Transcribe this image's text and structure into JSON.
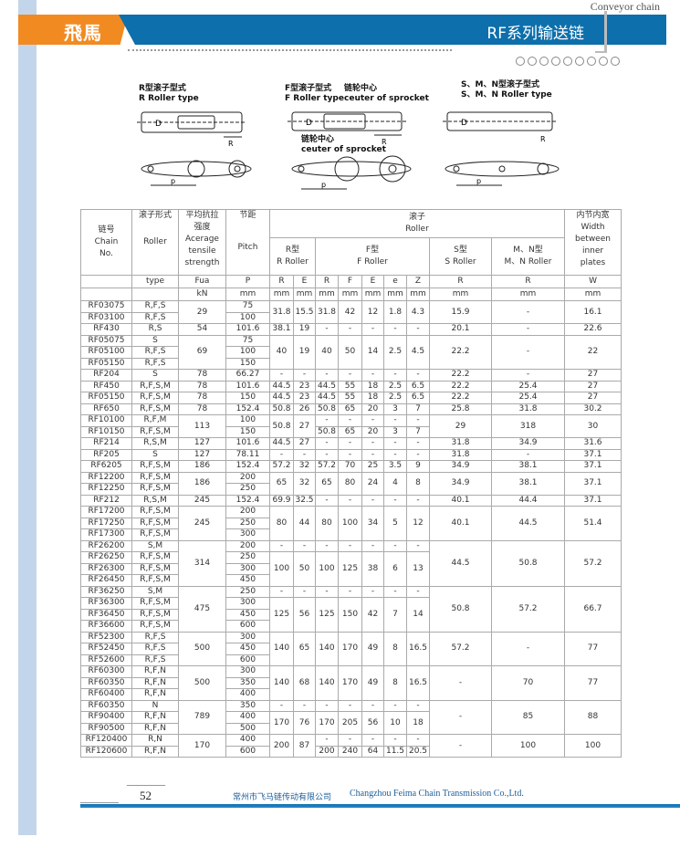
{
  "header": {
    "brand": "飛馬",
    "title": "RF系列输送链",
    "category": "Conveyor chain",
    "accent": "#0d6fab",
    "brand_color": "#f28a22"
  },
  "diagrams": [
    {
      "title_cn": "R型滚子型式",
      "title_en": "R Roller type"
    },
    {
      "title_cn": "F型滚子型式",
      "title_en": "F Roller type",
      "note_cn": "链轮中心",
      "note_en": "ceuter of sprocket",
      "note2_cn": "链轮中心",
      "note2_en": "ceuter of sprocket"
    },
    {
      "title_cn": "S、M、N型滚子型式",
      "title_en": "S、M、N Roller type"
    }
  ],
  "table": {
    "h": {
      "chain_cn": "链号",
      "chain_en": "Chain No.",
      "roller_cn": "滚子形式",
      "roller_en": "Roller",
      "fua_cn": "平均抗拉强度",
      "fua_en": "Acerage tensile strength",
      "pitch_cn": "节距",
      "pitch_en": "Pitch",
      "roller_group_cn": "滚子",
      "roller_group_en": "Roller",
      "width_cn": "内节内宽",
      "width_en": "Width",
      "width_en2": "between inner plates",
      "r_cn": "R型",
      "r_en": "R Roller",
      "f_cn": "F型",
      "f_en": "F Roller",
      "s_cn": "S型",
      "s_en": "S Roller",
      "mn_cn": "M、N型",
      "mn_en": "M、N Roller"
    },
    "symbols": [
      "",
      "type",
      "Fua",
      "P",
      "R",
      "E",
      "R",
      "F",
      "E",
      "e",
      "Z",
      "R",
      "R",
      "W"
    ],
    "units": [
      "",
      "",
      "kN",
      "mm",
      "mm",
      "mm",
      "mm",
      "mm",
      "mm",
      "mm",
      "mm",
      "mm",
      "mm",
      "mm"
    ],
    "rows": [
      [
        "RF03075",
        "R,F,S",
        "29",
        "75",
        "31.8",
        "15.5",
        "31.8",
        "42",
        "12",
        "1.8",
        "4.3",
        "15.9",
        "-",
        "16.1"
      ],
      [
        "RF03100",
        "R,F,S",
        null,
        "100",
        null,
        null,
        null,
        null,
        null,
        null,
        null,
        null,
        null,
        null
      ],
      [
        "RF430",
        "R,S",
        "54",
        "101.6",
        "38.1",
        "19",
        "-",
        "-",
        "-",
        "-",
        "-",
        "20.1",
        "-",
        "22.6"
      ],
      [
        "RF05075",
        "S",
        "69",
        "75",
        "40",
        "19",
        "40",
        "50",
        "14",
        "2.5",
        "4.5",
        "22.2",
        "-",
        "22"
      ],
      [
        "RF05100",
        "R,F,S",
        null,
        "100",
        null,
        null,
        null,
        null,
        null,
        null,
        null,
        null,
        null,
        null
      ],
      [
        "RF05150",
        "R,F,S",
        null,
        "150",
        null,
        null,
        null,
        null,
        null,
        null,
        null,
        null,
        null,
        null
      ],
      [
        "RF204",
        "S",
        "78",
        "66.27",
        "-",
        "-",
        "-",
        "-",
        "-",
        "-",
        "-",
        "22.2",
        "-",
        "27"
      ],
      [
        "RF450",
        "R,F,S,M",
        "78",
        "101.6",
        "44.5",
        "23",
        "44.5",
        "55",
        "18",
        "2.5",
        "6.5",
        "22.2",
        "25.4",
        "27"
      ],
      [
        "RF05150",
        "R,F,S,M",
        "78",
        "150",
        "44.5",
        "23",
        "44.5",
        "55",
        "18",
        "2.5",
        "6.5",
        "22.2",
        "25.4",
        "27"
      ],
      [
        "RF650",
        "R,F,S,M",
        "78",
        "152.4",
        "50.8",
        "26",
        "50.8",
        "65",
        "20",
        "3",
        "7",
        "25.8",
        "31.8",
        "30.2"
      ],
      [
        "RF10100",
        "R,F,M",
        "113",
        "100",
        "50.8",
        "27",
        "-",
        "-",
        "-",
        "-",
        "-",
        "29",
        "318",
        "30"
      ],
      [
        "RF10150",
        "R,F,S,M",
        null,
        "150",
        null,
        null,
        "50.8",
        "65",
        "20",
        "3",
        "7",
        null,
        null,
        null
      ],
      [
        "RF214",
        "R,S,M",
        "127",
        "101.6",
        "44.5",
        "27",
        "-",
        "-",
        "-",
        "-",
        "-",
        "31.8",
        "34.9",
        "31.6"
      ],
      [
        "RF205",
        "S",
        "127",
        "78.11",
        "-",
        "-",
        "-",
        "-",
        "-",
        "-",
        "-",
        "31.8",
        "-",
        "37.1"
      ],
      [
        "RF6205",
        "R,F,S,M",
        "186",
        "152.4",
        "57.2",
        "32",
        "57.2",
        "70",
        "25",
        "3.5",
        "9",
        "34.9",
        "38.1",
        "37.1"
      ],
      [
        "RF12200",
        "R,F,S,M",
        "186",
        "200",
        "65",
        "32",
        "65",
        "80",
        "24",
        "4",
        "8",
        "34.9",
        "38.1",
        "37.1"
      ],
      [
        "RF12250",
        "R,F,S,M",
        null,
        "250",
        null,
        null,
        null,
        null,
        null,
        null,
        null,
        null,
        null,
        null
      ],
      [
        "RF212",
        "R,S,M",
        "245",
        "152.4",
        "69.9",
        "32.5",
        "-",
        "-",
        "-",
        "-",
        "-",
        "40.1",
        "44.4",
        "37.1"
      ],
      [
        "RF17200",
        "R,F,S,M",
        "245",
        "200",
        "80",
        "44",
        "80",
        "100",
        "34",
        "5",
        "12",
        "40.1",
        "44.5",
        "51.4"
      ],
      [
        "RF17250",
        "R,F,S,M",
        null,
        "250",
        null,
        null,
        null,
        null,
        null,
        null,
        null,
        null,
        null,
        null
      ],
      [
        "RF17300",
        "R,F,S,M",
        null,
        "300",
        null,
        null,
        null,
        null,
        null,
        null,
        null,
        null,
        null,
        null
      ],
      [
        "RF26200",
        "S,M",
        "314",
        "200",
        "-",
        "-",
        "-",
        "-",
        "-",
        "-",
        "-",
        "44.5",
        "50.8",
        "57.2"
      ],
      [
        "RF26250",
        "R,F,S,M",
        null,
        "250",
        "100",
        "50",
        "100",
        "125",
        "38",
        "6",
        "13",
        null,
        null,
        null
      ],
      [
        "RF26300",
        "R,F,S,M",
        null,
        "300",
        null,
        null,
        null,
        null,
        null,
        null,
        null,
        null,
        null,
        null
      ],
      [
        "RF26450",
        "R,F,S,M",
        null,
        "450",
        null,
        null,
        null,
        null,
        null,
        null,
        null,
        null,
        null,
        null
      ],
      [
        "RF36250",
        "S,M",
        "475",
        "250",
        "-",
        "-",
        "-",
        "-",
        "-",
        "-",
        "-",
        "50.8",
        "57.2",
        "66.7"
      ],
      [
        "RF36300",
        "R,F,S,M",
        null,
        "300",
        "125",
        "56",
        "125",
        "150",
        "42",
        "7",
        "14",
        null,
        null,
        null
      ],
      [
        "RF36450",
        "R,F,S,M",
        null,
        "450",
        null,
        null,
        null,
        null,
        null,
        null,
        null,
        null,
        null,
        null
      ],
      [
        "RF36600",
        "R,F,S,M",
        null,
        "600",
        null,
        null,
        null,
        null,
        null,
        null,
        null,
        null,
        null,
        null
      ],
      [
        "RF52300",
        "R,F,S",
        "500",
        "300",
        "140",
        "65",
        "140",
        "170",
        "49",
        "8",
        "16.5",
        "57.2",
        "-",
        "77"
      ],
      [
        "RF52450",
        "R,F,S",
        null,
        "450",
        null,
        null,
        null,
        null,
        null,
        null,
        null,
        null,
        null,
        null
      ],
      [
        "RF52600",
        "R,F,S",
        null,
        "600",
        null,
        null,
        null,
        null,
        null,
        null,
        null,
        null,
        null,
        null
      ],
      [
        "RF60300",
        "R,F,N",
        "500",
        "300",
        "140",
        "68",
        "140",
        "170",
        "49",
        "8",
        "16.5",
        "-",
        "70",
        "77"
      ],
      [
        "RF60350",
        "R,F,N",
        null,
        "350",
        null,
        null,
        null,
        null,
        null,
        null,
        null,
        null,
        null,
        null
      ],
      [
        "RF60400",
        "R,F,N",
        null,
        "400",
        null,
        null,
        null,
        null,
        null,
        null,
        null,
        null,
        null,
        null
      ],
      [
        "RF60350",
        "N",
        "789",
        "350",
        "-",
        "-",
        "-",
        "-",
        "-",
        "-",
        "-",
        "-",
        "85",
        "88"
      ],
      [
        "RF90400",
        "R,F,N",
        null,
        "400",
        "170",
        "76",
        "170",
        "205",
        "56",
        "10",
        "18",
        null,
        null,
        null
      ],
      [
        "RF90500",
        "R,F,N",
        null,
        "500",
        null,
        null,
        null,
        null,
        null,
        null,
        null,
        null,
        null,
        null
      ],
      [
        "RF120400",
        "R,N",
        "170",
        "400",
        "200",
        "87",
        "-",
        "-",
        "-",
        "-",
        "-",
        "-",
        "100",
        "100"
      ],
      [
        "RF120600",
        "R,F,N",
        null,
        "600",
        null,
        null,
        "200",
        "240",
        "64",
        "11.5",
        "20.5",
        null,
        null,
        null
      ]
    ]
  },
  "footer": {
    "page": "52",
    "company_cn": "常州市飞马链传动有限公司",
    "company_en": "Changzhou Feima Chain Transmission Co.,Ltd."
  }
}
